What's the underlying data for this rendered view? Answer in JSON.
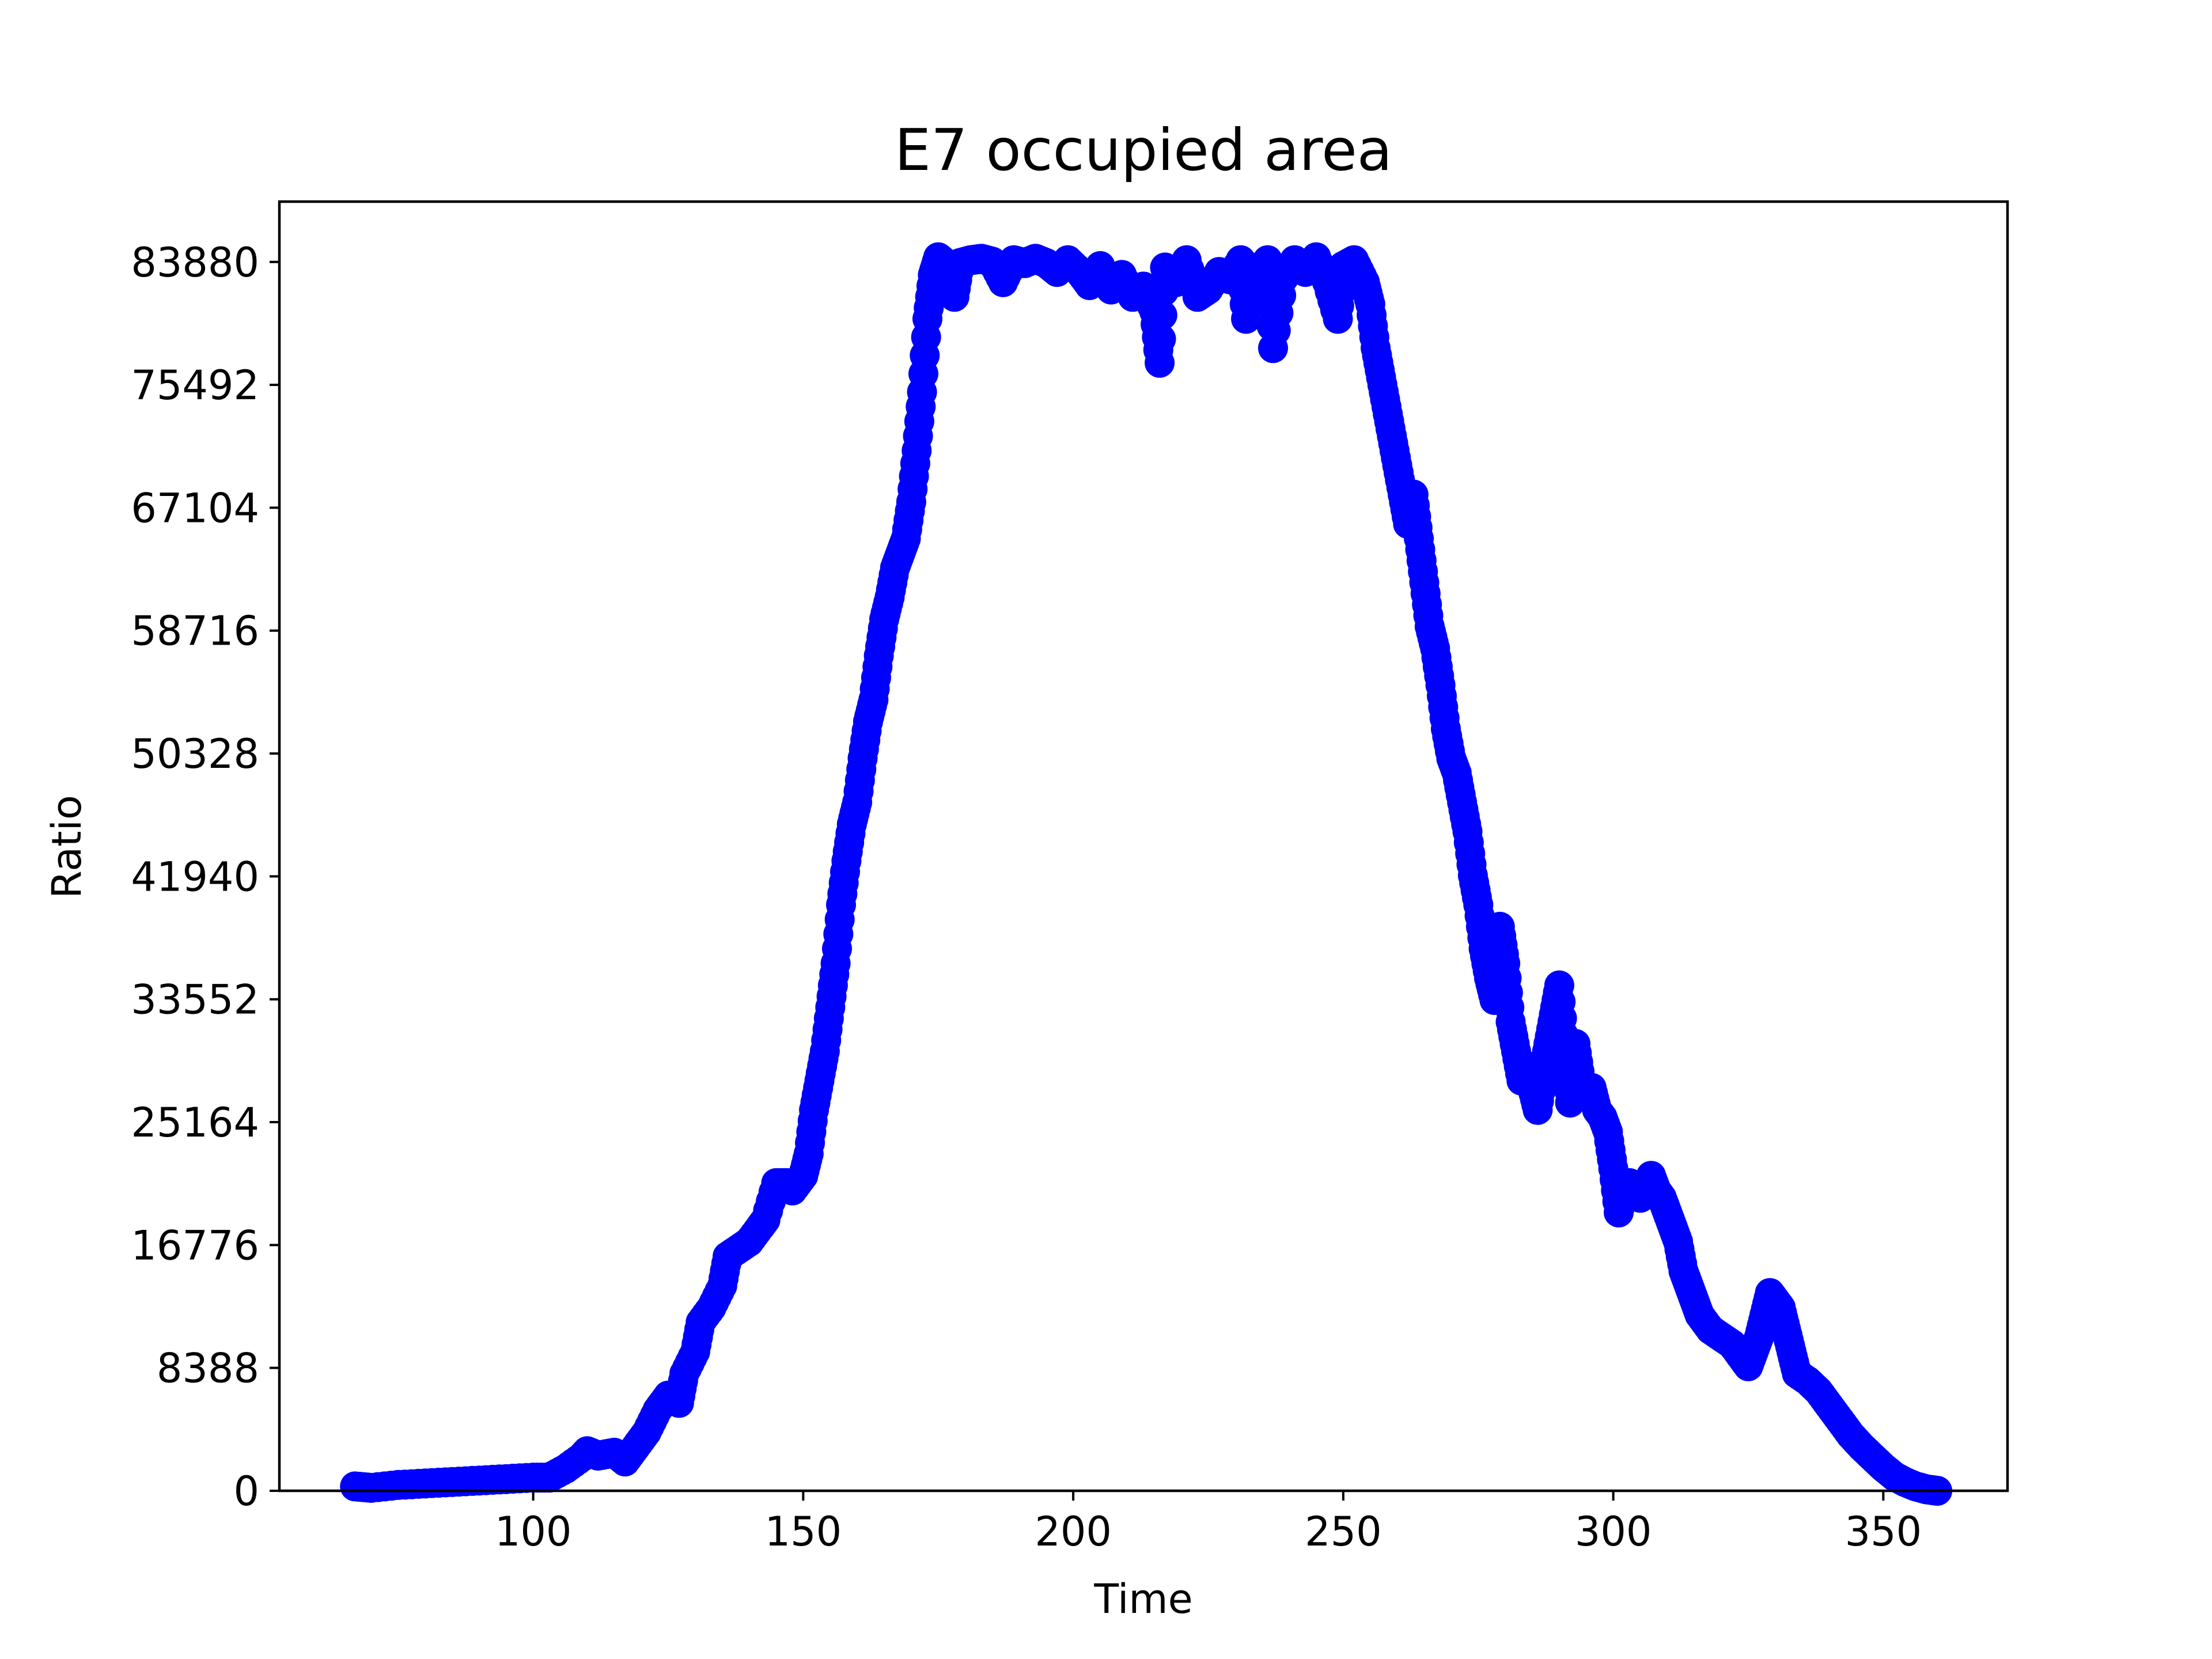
{
  "chart_data": {
    "type": "scatter",
    "title": "E7 occupied area",
    "xlabel": "Time",
    "ylabel": "Ratio",
    "xlim": [
      53,
      373
    ],
    "ylim": [
      0,
      88000
    ],
    "xticks": [
      100,
      150,
      200,
      250,
      300,
      350
    ],
    "yticks": [
      0,
      8388,
      16776,
      25164,
      33552,
      41940,
      50328,
      58716,
      67104,
      75492,
      83880
    ],
    "grid": false,
    "legend": "none",
    "series": [
      {
        "color": "#0000ff",
        "points": [
          [
            67,
            300
          ],
          [
            70,
            200
          ],
          [
            75,
            400
          ],
          [
            80,
            500
          ],
          [
            85,
            600
          ],
          [
            90,
            700
          ],
          [
            95,
            800
          ],
          [
            100,
            900
          ],
          [
            103,
            900
          ],
          [
            106,
            1500
          ],
          [
            109,
            2300
          ],
          [
            110,
            2700
          ],
          [
            112,
            2400
          ],
          [
            115,
            2600
          ],
          [
            117,
            2000
          ],
          [
            119,
            3000
          ],
          [
            121,
            4000
          ],
          [
            123,
            5500
          ],
          [
            125,
            6500
          ],
          [
            127,
            6000
          ],
          [
            128,
            8000
          ],
          [
            130,
            9500
          ],
          [
            131,
            11500
          ],
          [
            133,
            12500
          ],
          [
            135,
            14000
          ],
          [
            136,
            16000
          ],
          [
            138,
            16500
          ],
          [
            140,
            17000
          ],
          [
            142,
            18000
          ],
          [
            143,
            18500
          ],
          [
            145,
            21000
          ],
          [
            147,
            21000
          ],
          [
            148,
            20500
          ],
          [
            150,
            21500
          ],
          [
            151,
            23000
          ],
          [
            152,
            26000
          ],
          [
            153,
            28000
          ],
          [
            154,
            30000
          ],
          [
            155,
            33000
          ],
          [
            156,
            36000
          ],
          [
            157,
            40000
          ],
          [
            158,
            43000
          ],
          [
            159,
            45500
          ],
          [
            160,
            47000
          ],
          [
            161,
            50000
          ],
          [
            162,
            52500
          ],
          [
            163,
            54000
          ],
          [
            164,
            57000
          ],
          [
            165,
            59500
          ],
          [
            166,
            61000
          ],
          [
            167,
            63000
          ],
          [
            168,
            64000
          ],
          [
            169,
            65000
          ],
          [
            170,
            67500
          ],
          [
            171,
            71000
          ],
          [
            172,
            75000
          ],
          [
            173,
            80000
          ],
          [
            174,
            83000
          ],
          [
            175,
            84200
          ],
          [
            176,
            83900
          ],
          [
            177,
            82500
          ],
          [
            178,
            81500
          ],
          [
            179,
            83800
          ],
          [
            181,
            84000
          ],
          [
            183,
            84100
          ],
          [
            185,
            83900
          ],
          [
            187,
            82500
          ],
          [
            189,
            84000
          ],
          [
            191,
            83800
          ],
          [
            193,
            84100
          ],
          [
            195,
            83800
          ],
          [
            197,
            83200
          ],
          [
            199,
            84000
          ],
          [
            201,
            83300
          ],
          [
            203,
            82300
          ],
          [
            205,
            83600
          ],
          [
            207,
            82000
          ],
          [
            209,
            83000
          ],
          [
            211,
            81500
          ],
          [
            213,
            82200
          ],
          [
            215,
            80500
          ],
          [
            216,
            77000
          ],
          [
            217,
            83500
          ],
          [
            219,
            82500
          ],
          [
            221,
            84000
          ],
          [
            223,
            81500
          ],
          [
            225,
            82000
          ],
          [
            227,
            83200
          ],
          [
            229,
            82700
          ],
          [
            231,
            84000
          ],
          [
            232,
            80000
          ],
          [
            233,
            83500
          ],
          [
            235,
            82000
          ],
          [
            236,
            84000
          ],
          [
            237,
            78000
          ],
          [
            239,
            82800
          ],
          [
            241,
            84000
          ],
          [
            243,
            83200
          ],
          [
            245,
            84200
          ],
          [
            247,
            82500
          ],
          [
            249,
            80000
          ],
          [
            250,
            83600
          ],
          [
            252,
            84000
          ],
          [
            254,
            82500
          ],
          [
            255,
            81000
          ],
          [
            256,
            78000
          ],
          [
            257,
            76000
          ],
          [
            258,
            74000
          ],
          [
            259,
            72000
          ],
          [
            260,
            70000
          ],
          [
            261,
            68000
          ],
          [
            262,
            66000
          ],
          [
            263,
            68000
          ],
          [
            264,
            65000
          ],
          [
            265,
            62000
          ],
          [
            266,
            59000
          ],
          [
            267,
            57500
          ],
          [
            268,
            55000
          ],
          [
            269,
            52000
          ],
          [
            270,
            50000
          ],
          [
            271,
            49000
          ],
          [
            272,
            47000
          ],
          [
            273,
            45000
          ],
          [
            274,
            42000
          ],
          [
            275,
            40000
          ],
          [
            276,
            37000
          ],
          [
            277,
            35000
          ],
          [
            278,
            33500
          ],
          [
            279,
            38500
          ],
          [
            280,
            36000
          ],
          [
            281,
            32000
          ],
          [
            282,
            30000
          ],
          [
            283,
            28000
          ],
          [
            284,
            29000
          ],
          [
            285,
            27500
          ],
          [
            286,
            26000
          ],
          [
            287,
            28500
          ],
          [
            288,
            30500
          ],
          [
            289,
            32500
          ],
          [
            290,
            34500
          ],
          [
            291,
            30000
          ],
          [
            292,
            26500
          ],
          [
            293,
            30500
          ],
          [
            294,
            28000
          ],
          [
            295,
            27000
          ],
          [
            296,
            27500
          ],
          [
            297,
            26000
          ],
          [
            298,
            25500
          ],
          [
            299,
            24500
          ],
          [
            300,
            22000
          ],
          [
            301,
            19000
          ],
          [
            302,
            20500
          ],
          [
            303,
            21000
          ],
          [
            305,
            20000
          ],
          [
            307,
            21500
          ],
          [
            308,
            20500
          ],
          [
            309,
            20000
          ],
          [
            310,
            19000
          ],
          [
            311,
            18000
          ],
          [
            312,
            17000
          ],
          [
            313,
            15000
          ],
          [
            314,
            14000
          ],
          [
            315,
            13000
          ],
          [
            316,
            12000
          ],
          [
            318,
            11000
          ],
          [
            320,
            10500
          ],
          [
            322,
            10000
          ],
          [
            324,
            9000
          ],
          [
            325,
            8500
          ],
          [
            326,
            9500
          ],
          [
            327,
            10500
          ],
          [
            328,
            12000
          ],
          [
            329,
            13500
          ],
          [
            330,
            13000
          ],
          [
            331,
            12500
          ],
          [
            332,
            11000
          ],
          [
            333,
            9500
          ],
          [
            334,
            8000
          ],
          [
            336,
            7500
          ],
          [
            338,
            6800
          ],
          [
            340,
            5800
          ],
          [
            342,
            4800
          ],
          [
            344,
            3800
          ],
          [
            346,
            3000
          ],
          [
            348,
            2300
          ],
          [
            350,
            1600
          ],
          [
            352,
            1000
          ],
          [
            354,
            600
          ],
          [
            356,
            300
          ],
          [
            358,
            100
          ],
          [
            360,
            0
          ]
        ]
      }
    ]
  }
}
